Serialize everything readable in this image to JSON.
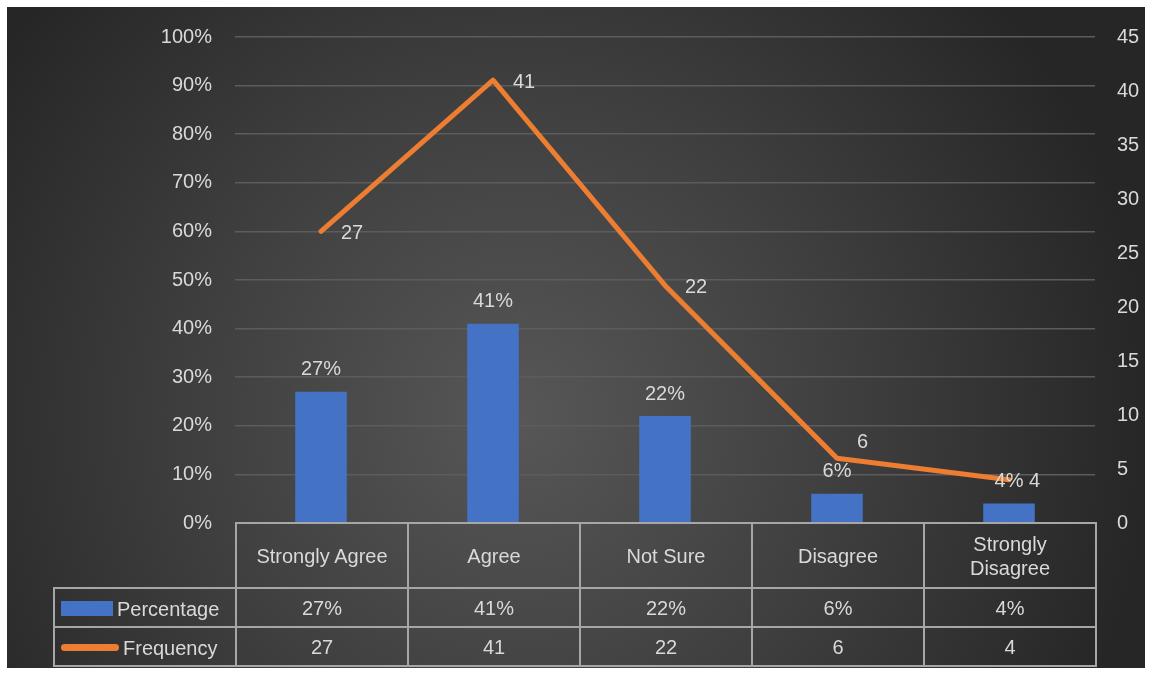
{
  "chart_data": {
    "type": "bar",
    "categories": [
      "Strongly Agree",
      "Agree",
      "Not Sure",
      "Disagree",
      "Strongly Disagree"
    ],
    "series": [
      {
        "name": "Percentage",
        "color": "#4472c4",
        "values": [
          27,
          41,
          22,
          6,
          4
        ],
        "value_labels": [
          "27%",
          "41%",
          "22%",
          "6%",
          "4%"
        ]
      },
      {
        "name": "Frequency",
        "type": "line",
        "axis": "y2",
        "color": "#ed7d31",
        "values": [
          27,
          41,
          22,
          6,
          4
        ],
        "value_labels": [
          "27",
          "41",
          "22",
          "6",
          "4"
        ]
      }
    ],
    "ylim": [
      0,
      100
    ],
    "yticks": [
      {
        "value": 0,
        "label": "0%"
      },
      {
        "value": 10,
        "label": "10%"
      },
      {
        "value": 20,
        "label": "20%"
      },
      {
        "value": 30,
        "label": "30%"
      },
      {
        "value": 40,
        "label": "40%"
      },
      {
        "value": 50,
        "label": "50%"
      },
      {
        "value": 60,
        "label": "60%"
      },
      {
        "value": 70,
        "label": "70%"
      },
      {
        "value": 80,
        "label": "80%"
      },
      {
        "value": 90,
        "label": "90%"
      },
      {
        "value": 100,
        "label": "100%"
      }
    ],
    "y2lim": [
      0,
      45
    ],
    "y2ticks": [
      0,
      5,
      10,
      15,
      20,
      25,
      30,
      35,
      40,
      45
    ],
    "grid": "y",
    "legend": "bottom",
    "marker": "none"
  }
}
